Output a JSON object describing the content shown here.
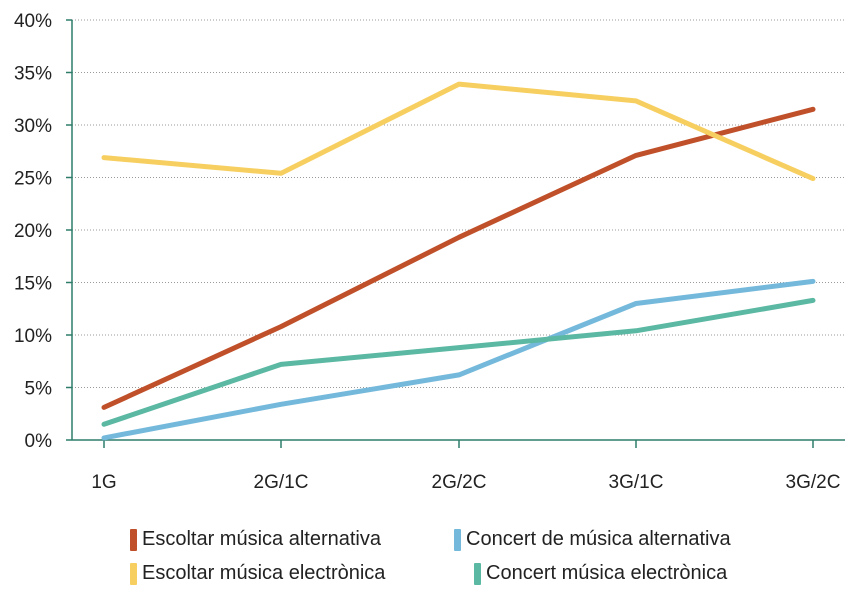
{
  "chart_data": {
    "type": "line",
    "categories": [
      "1G",
      "2G/1C",
      "2G/2C",
      "3G/1C",
      "3G/2C"
    ],
    "y_ticks": [
      "0%",
      "5%",
      "10%",
      "15%",
      "20%",
      "25%",
      "30%",
      "35%",
      "40%"
    ],
    "ylim": [
      0,
      40
    ],
    "grid": true,
    "legend_position": "bottom",
    "series": [
      {
        "name": "Escoltar música alternativa",
        "color": "#c0502a",
        "values": [
          3.1,
          10.8,
          19.3,
          27.1,
          31.5
        ]
      },
      {
        "name": "Escoltar música electrònica",
        "color": "#f7cf60",
        "values": [
          26.9,
          25.4,
          33.9,
          32.3,
          24.9
        ]
      },
      {
        "name": "Concert de música alternativa",
        "color": "#74b9db",
        "values": [
          0.2,
          3.4,
          6.2,
          13.0,
          15.1
        ]
      },
      {
        "name": "Concert música electrònica",
        "color": "#5bb8a2",
        "values": [
          1.5,
          7.2,
          8.8,
          10.4,
          13.3
        ]
      }
    ]
  },
  "legend": {
    "row1": [
      {
        "label": "Escoltar música alternativa",
        "color": "#c0502a"
      },
      {
        "label": "Concert de música alternativa",
        "color": "#74b9db"
      }
    ],
    "row2": [
      {
        "label": "Escoltar música electrònica",
        "color": "#f7cf60"
      },
      {
        "label": "Concert música electrònica",
        "color": "#5bb8a2"
      }
    ]
  }
}
